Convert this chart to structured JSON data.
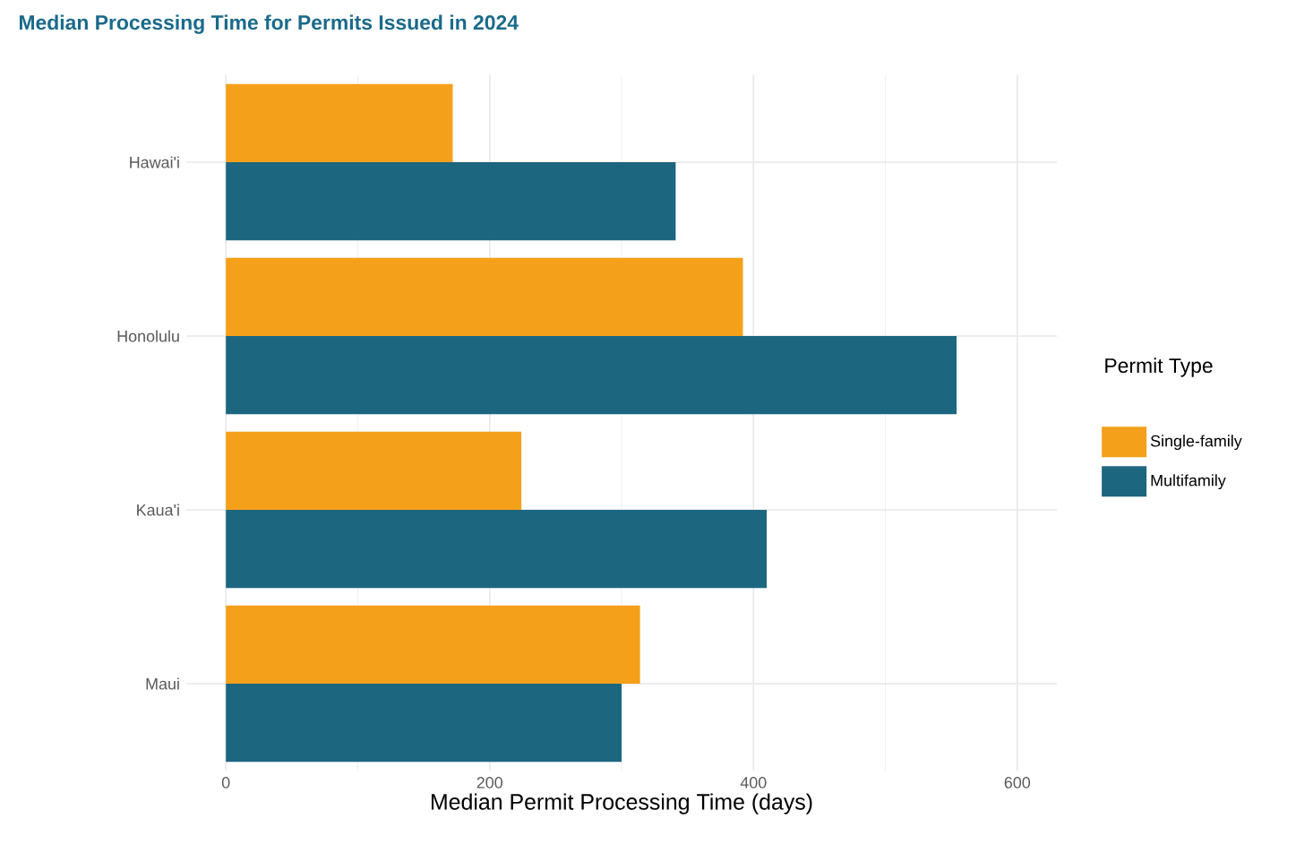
{
  "chart_data": {
    "type": "bar",
    "orientation": "horizontal",
    "title": "Median Processing Time for Permits Issued in 2024",
    "xlabel": "Median Permit Processing Time (days)",
    "legend_title": "Permit Type",
    "categories": [
      "Hawai'i",
      "Honolulu",
      "Kaua'i",
      "Maui"
    ],
    "series": [
      {
        "name": "Single-family",
        "color": "#f5a01a",
        "values": [
          172,
          392,
          224,
          314
        ]
      },
      {
        "name": "Multifamily",
        "color": "#1d6680",
        "values": [
          341,
          554,
          410,
          300
        ]
      }
    ],
    "xlim": [
      -30,
      630
    ],
    "xticks": [
      0,
      200,
      400,
      600
    ],
    "grid": true,
    "legend": "right"
  }
}
